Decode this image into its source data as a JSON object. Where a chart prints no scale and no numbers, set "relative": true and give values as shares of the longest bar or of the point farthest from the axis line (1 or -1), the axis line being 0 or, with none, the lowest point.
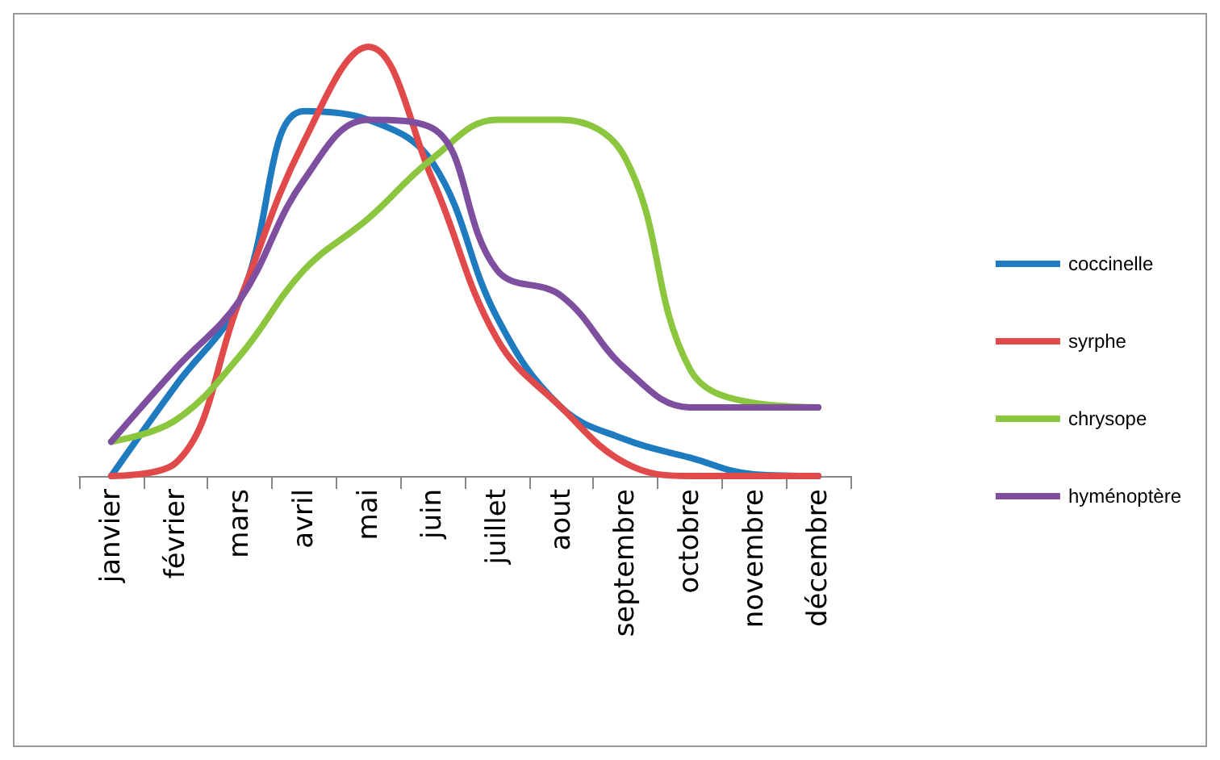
{
  "chart_data": {
    "type": "line",
    "relative": true,
    "categories": [
      "janvier",
      "février",
      "mars",
      "avril",
      "mai",
      "juin",
      "juillet",
      "aout",
      "septembre",
      "octobre",
      "novembre",
      "décembre"
    ],
    "legend": "right",
    "grid": false,
    "marker": "none",
    "line_style": "solid",
    "series": [
      {
        "name": "coccinelle",
        "color": "#1f7bc0",
        "values": [
          0,
          0.21,
          0.41,
          0.85,
          0.83,
          0.73,
          0.37,
          0.16,
          0.085,
          0.043,
          0.004,
          0
        ]
      },
      {
        "name": "syrphe",
        "color": "#e04a4a",
        "values": [
          0,
          0.03,
          0.41,
          0.78,
          1,
          0.69,
          0.32,
          0.16,
          0.03,
          0,
          0,
          0
        ]
      },
      {
        "name": "chrysope",
        "color": "#8cc63f",
        "values": [
          0.08,
          0.13,
          0.28,
          0.48,
          0.6,
          0.74,
          0.83,
          0.83,
          0.74,
          0.25,
          0.17,
          0.16
        ]
      },
      {
        "name": "hyménoptère",
        "color": "#7e4f9e",
        "values": [
          0.08,
          0.25,
          0.41,
          0.69,
          0.83,
          0.81,
          0.48,
          0.42,
          0.25,
          0.16,
          0.16,
          0.16
        ]
      }
    ]
  }
}
